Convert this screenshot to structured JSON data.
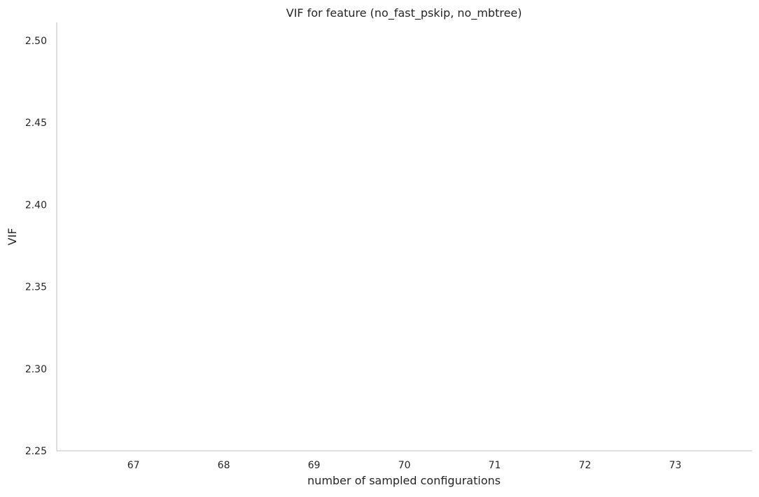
{
  "chart_data": {
    "type": "line",
    "title": "VIF for feature (no_fast_pskip, no_mbtree)",
    "xlabel": "number of sampled configurations",
    "ylabel": "VIF",
    "x_ticks": [
      67,
      68,
      69,
      70,
      71,
      72,
      73
    ],
    "x_tick_labels": [
      "67",
      "68",
      "69",
      "70",
      "71",
      "72",
      "73"
    ],
    "y_ticks": [
      2.25,
      2.3,
      2.35,
      2.4,
      2.45,
      2.5
    ],
    "y_tick_labels": [
      "2.25",
      "2.30",
      "2.35",
      "2.40",
      "2.45",
      "2.50"
    ],
    "xlim": [
      66.15,
      73.85
    ],
    "ylim": [
      2.25,
      2.511
    ],
    "grid": false,
    "series": []
  },
  "colors": {
    "axis": "#cccccc",
    "text": "#262626",
    "background": "#ffffff"
  }
}
